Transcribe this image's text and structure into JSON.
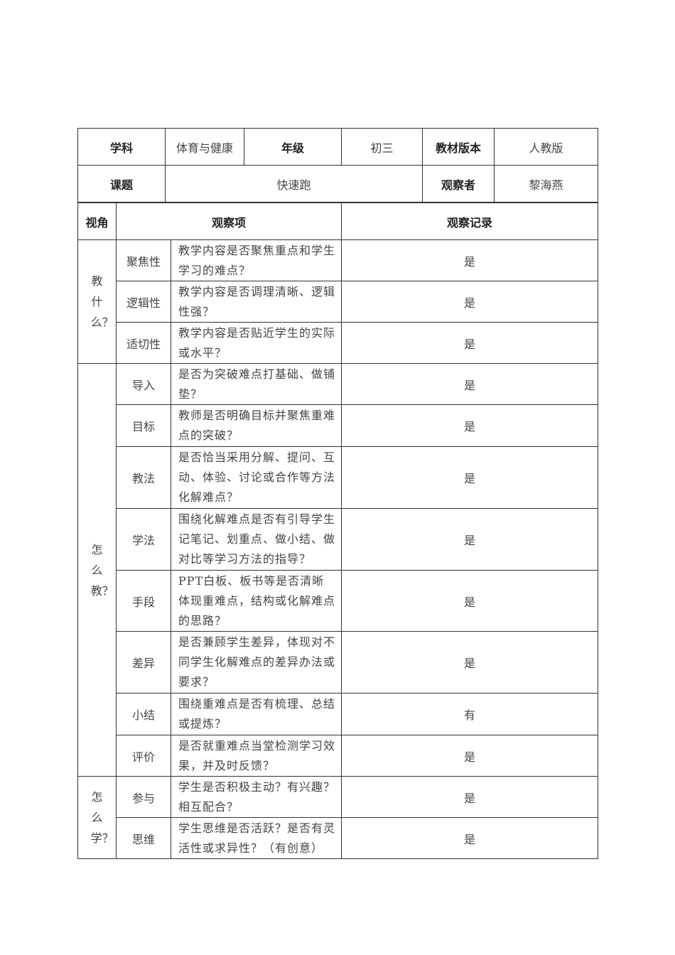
{
  "header": {
    "subject_label": "学科",
    "subject": "体育与健康",
    "grade_label": "年级",
    "grade": "初三",
    "edition_label": "教材版本",
    "edition": "人教版",
    "topic_label": "课题",
    "topic": "快速跑",
    "observer_label": "观察者",
    "observer": "黎海燕"
  },
  "columns": {
    "perspective": "视角",
    "item": "观察项",
    "record": "观察记录"
  },
  "groups": [
    {
      "perspective": "教什么？",
      "rows": [
        {
          "item": "聚焦性",
          "question": "教学内容是否聚焦重点和学生学习的难点？",
          "record": "是"
        },
        {
          "item": "逻辑性",
          "question": "教学内容是否调理清晰、逻辑性强？",
          "record": "是"
        },
        {
          "item": "适切性",
          "question": "教学内容是否贴近学生的实际或水平？",
          "record": "是"
        }
      ]
    },
    {
      "perspective": "怎么教？",
      "rows": [
        {
          "item": "导入",
          "question": "是否为突破难点打基础、做铺垫？",
          "record": "是"
        },
        {
          "item": "目标",
          "question": "教师是否明确目标并聚焦重难点的突破？",
          "record": "是"
        },
        {
          "item": "教法",
          "question": "是否恰当采用分解、提问、互动、体验、讨论或合作等方法化解难点？",
          "record": "是"
        },
        {
          "item": "学法",
          "question": "围绕化解难点是否有引导学生记笔记、划重点、做小结、做对比等学习方法的指导？",
          "record": "是"
        },
        {
          "item": "手段",
          "question": "PPT白板、板书等是否清晰体现重难点，结构或化解难点的思路？",
          "record": "是"
        },
        {
          "item": "差异",
          "question": "是否兼顾学生差异，体现对不同学生化解难点的差异办法或要求？",
          "record": "是"
        },
        {
          "item": "小结",
          "question": "围绕重难点是否有梳理、总结或提炼？",
          "record": "有"
        },
        {
          "item": "评价",
          "question": "是否就重难点当堂检测学习效果，并及时反馈？",
          "record": "是"
        }
      ]
    },
    {
      "perspective": "怎么学？",
      "rows": [
        {
          "item": "参与",
          "question": "学生是否积极主动？有兴趣？相互配合？",
          "record": "是"
        },
        {
          "item": "思维",
          "question": "学生思维是否活跃？是否有灵活性或求异性？（有创意）",
          "record": "是"
        }
      ]
    }
  ]
}
